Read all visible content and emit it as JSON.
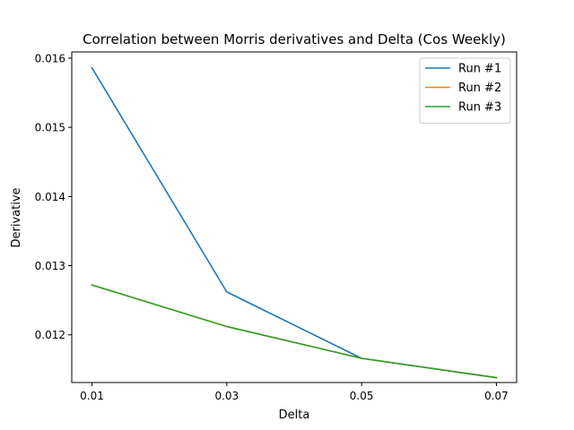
{
  "chart_data": {
    "type": "line",
    "title": "Correlation between Morris derivatives and Delta (Cos Weekly)",
    "xlabel": "Delta",
    "ylabel": "Derivative",
    "x": [
      0.01,
      0.03,
      0.05,
      0.07
    ],
    "x_tick_labels": [
      "0.01",
      "0.03",
      "0.05",
      "0.07"
    ],
    "y_ticks": [
      0.012,
      0.013,
      0.014,
      0.015,
      0.016
    ],
    "y_tick_labels": [
      "0.012",
      "0.013",
      "0.014",
      "0.015",
      "0.016"
    ],
    "xlim": [
      0.007,
      0.073
    ],
    "ylim": [
      0.01131,
      0.01609
    ],
    "grid": false,
    "legend_position": "top-right",
    "series": [
      {
        "name": "Run #1",
        "color": "#1f77b4",
        "values": [
          0.01586,
          0.01262,
          0.01166,
          0.01138
        ]
      },
      {
        "name": "Run #2",
        "color": "#ff7f0e",
        "values": [
          0.01272,
          0.01212,
          0.01166,
          0.01138
        ]
      },
      {
        "name": "Run #3",
        "color": "#2ca02c",
        "values": [
          0.01272,
          0.01212,
          0.01166,
          0.01138
        ]
      }
    ]
  }
}
